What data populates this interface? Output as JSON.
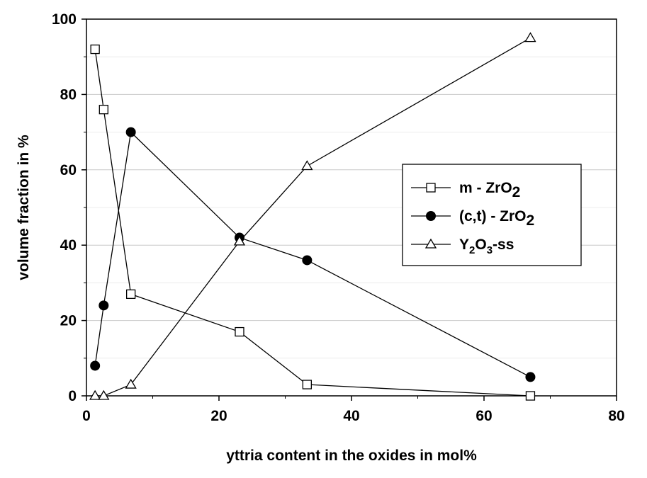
{
  "chart_data": {
    "type": "line",
    "xlabel": "yttria content in the oxides in mol%",
    "ylabel": "volume fraction in %",
    "xlim": [
      0,
      80
    ],
    "ylim": [
      0,
      100
    ],
    "x_ticks": [
      "0",
      "20",
      "40",
      "60",
      "80"
    ],
    "y_ticks": [
      "0",
      "20",
      "40",
      "60",
      "80",
      "100"
    ],
    "grid": "horizontal",
    "legend_position": "center-right",
    "series": [
      {
        "name": "m - ZrO2",
        "name_main": "m - ZrO",
        "name_sub": "2",
        "marker": "open-square",
        "x": [
          1.3,
          2.6,
          6.7,
          23.1,
          33.3,
          67
        ],
        "y": [
          92,
          76,
          27,
          17,
          3,
          0
        ]
      },
      {
        "name": "(c,t) - ZrO2",
        "name_main": "(c,t) - ZrO",
        "name_sub": "2",
        "marker": "filled-circle",
        "x": [
          1.3,
          2.6,
          6.7,
          23.1,
          33.3,
          67
        ],
        "y": [
          8,
          24,
          70,
          42,
          36,
          5
        ]
      },
      {
        "name": "Y2O3-ss",
        "name_parts": [
          "Y",
          "2",
          "O",
          "3",
          "-ss"
        ],
        "marker": "open-triangle",
        "x": [
          1.3,
          2.6,
          6.7,
          23.1,
          33.3,
          67
        ],
        "y": [
          0,
          0,
          3,
          41,
          61,
          95
        ]
      }
    ]
  }
}
